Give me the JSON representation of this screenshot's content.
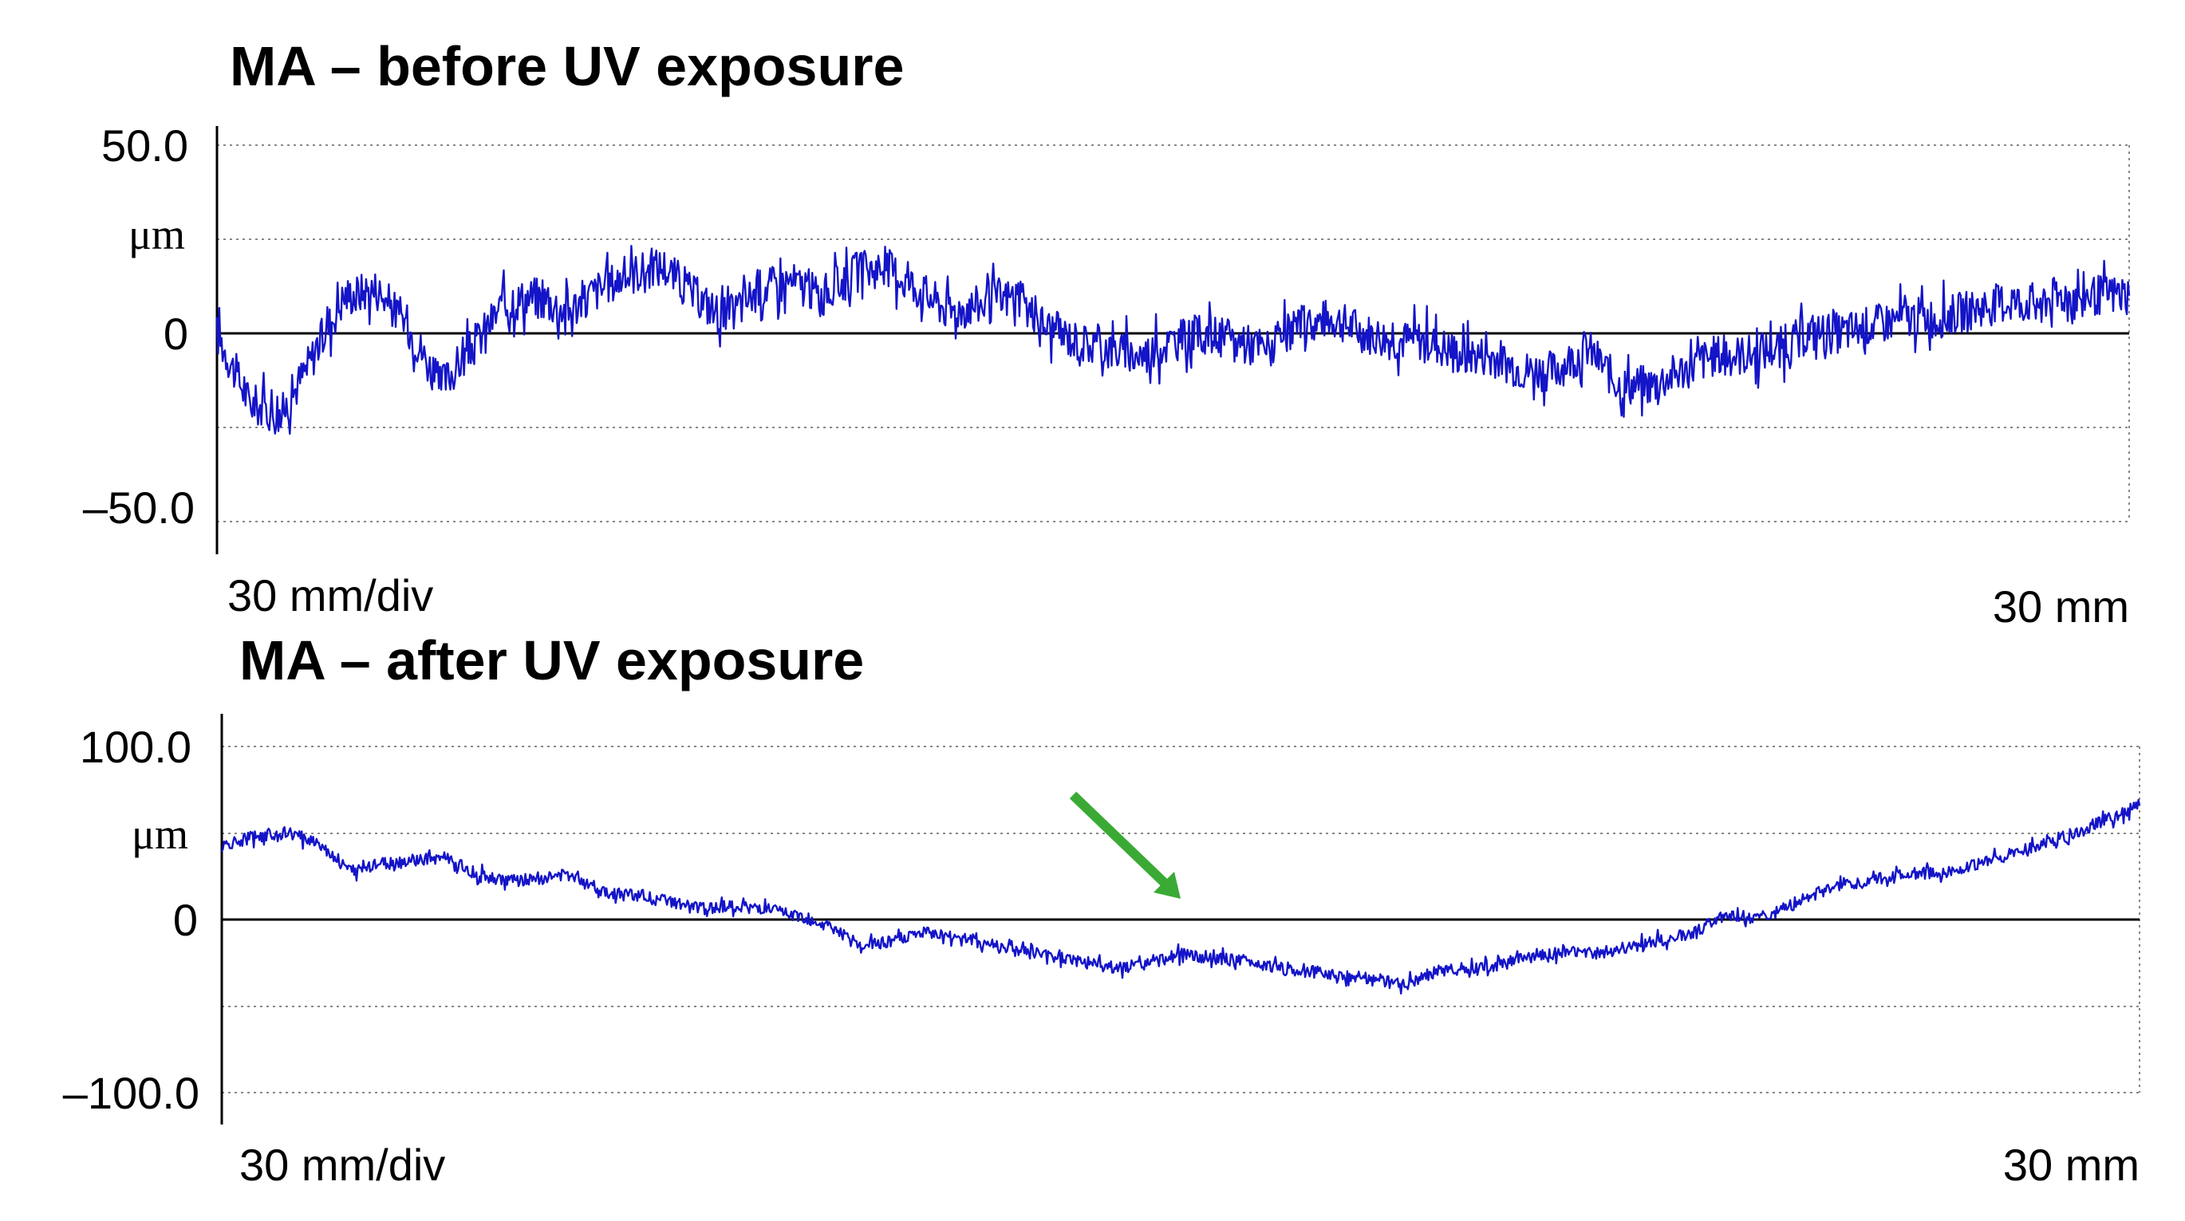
{
  "chart_data": [
    {
      "type": "line",
      "title": "MA – before UV exposure",
      "unit_label": "μm",
      "ylim": [
        -50,
        50
      ],
      "xlim": [
        0,
        30
      ],
      "y_tick_labels": [
        "50.0",
        "0",
        "–50.0"
      ],
      "x_scale_label": "30 mm/div",
      "x_end_label": "30 mm",
      "grid": "dotted horizontal",
      "line_color": "#1414c8",
      "series": [
        {
          "x": [
            0,
            0.5,
            1,
            1.5,
            2,
            2.5,
            3,
            3.5,
            4,
            4.5,
            5,
            5.5,
            6,
            6.5,
            7,
            7.5,
            8,
            8.5,
            9,
            9.5,
            10,
            10.5,
            11,
            11.5,
            12,
            12.5,
            13,
            13.5,
            14,
            14.5,
            15,
            15.5,
            16,
            16.5,
            17,
            17.5,
            18,
            18.5,
            19,
            19.5,
            20,
            20.5,
            21,
            21.5,
            22,
            22.5,
            23,
            23.5,
            24,
            24.5,
            25,
            25.5,
            26,
            26.5,
            27,
            27.5,
            28,
            28.5,
            29,
            29.5,
            30
          ],
          "values": [
            0,
            -18,
            -22,
            -6,
            10,
            12,
            2,
            -14,
            -4,
            8,
            10,
            6,
            12,
            16,
            18,
            10,
            4,
            12,
            14,
            10,
            16,
            18,
            12,
            6,
            8,
            10,
            2,
            -2,
            -4,
            -6,
            -2,
            0,
            -2,
            -4,
            2,
            4,
            0,
            -2,
            -2,
            -6,
            -6,
            -10,
            -10,
            -4,
            -14,
            -14,
            -10,
            -6,
            -6,
            -4,
            0,
            0,
            2,
            4,
            4,
            6,
            8,
            8,
            10,
            10,
            10
          ]
        }
      ]
    },
    {
      "type": "line",
      "title": "MA – after UV exposure",
      "unit_label": "μm",
      "ylim": [
        -100,
        100
      ],
      "xlim": [
        0,
        30
      ],
      "y_tick_labels": [
        "100.0",
        "0",
        "–100.0"
      ],
      "x_scale_label": "30 mm/div",
      "x_end_label": "30 mm",
      "grid": "dotted horizontal",
      "line_color": "#1414c8",
      "annotation": {
        "type": "arrow",
        "color": "#3aaa35",
        "points_to_x": 15,
        "points_to_y": 12
      },
      "series": [
        {
          "x": [
            0,
            0.5,
            1,
            1.5,
            2,
            2.5,
            3,
            3.5,
            4,
            4.5,
            5,
            5.5,
            6,
            6.5,
            7,
            7.5,
            8,
            8.5,
            9,
            9.5,
            10,
            10.5,
            11,
            11.5,
            12,
            12.5,
            13,
            13.5,
            14,
            14.5,
            15,
            15.5,
            16,
            16.5,
            17,
            17.5,
            18,
            18.5,
            19,
            19.5,
            20,
            20.5,
            21,
            21.5,
            22,
            22.5,
            23,
            23.5,
            24,
            24.5,
            25,
            25.5,
            26,
            26.5,
            27,
            27.5,
            28,
            28.5,
            29,
            29.5,
            30
          ],
          "values": [
            42,
            48,
            50,
            45,
            28,
            32,
            34,
            36,
            26,
            22,
            24,
            26,
            16,
            14,
            10,
            6,
            8,
            6,
            2,
            -4,
            -16,
            -12,
            -8,
            -10,
            -14,
            -18,
            -22,
            -24,
            -28,
            -26,
            -20,
            -22,
            -24,
            -28,
            -30,
            -32,
            -34,
            -38,
            -30,
            -28,
            -26,
            -22,
            -18,
            -20,
            -16,
            -12,
            -8,
            2,
            0,
            8,
            16,
            20,
            24,
            26,
            28,
            32,
            38,
            44,
            50,
            58,
            66
          ]
        }
      ]
    }
  ]
}
